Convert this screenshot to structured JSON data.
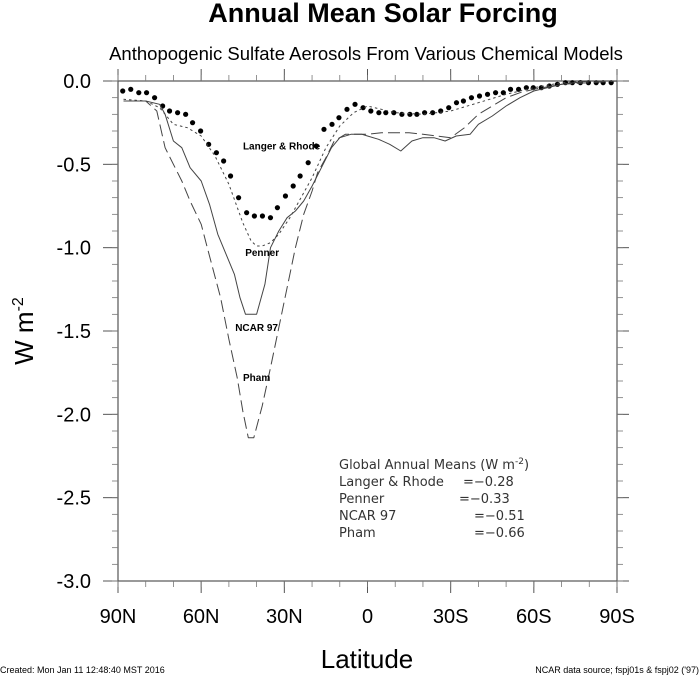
{
  "chart_data": {
    "type": "line",
    "title": "Annual Mean Solar Forcing",
    "subtitle": "Anthopogenic Sulfate Aerosols From Various Chemical Models",
    "xlabel": "Latitude",
    "ylabel": "W m",
    "ylabel_superscript": "-2",
    "xlim": [
      90,
      -90
    ],
    "ylim": [
      -3.0,
      0.0
    ],
    "x_ticks": [
      {
        "value": 90,
        "label": "90N"
      },
      {
        "value": 60,
        "label": "60N"
      },
      {
        "value": 30,
        "label": "30N"
      },
      {
        "value": 0,
        "label": "0"
      },
      {
        "value": -30,
        "label": "30S"
      },
      {
        "value": -60,
        "label": "60S"
      },
      {
        "value": -90,
        "label": "90S"
      }
    ],
    "y_ticks": [
      {
        "value": 0.0,
        "label": "0.0"
      },
      {
        "value": -0.5,
        "label": "-0.5"
      },
      {
        "value": -1.0,
        "label": "-1.0"
      },
      {
        "value": -1.5,
        "label": "-1.5"
      },
      {
        "value": -2.0,
        "label": "-2.0"
      },
      {
        "value": -2.5,
        "label": "-2.5"
      },
      {
        "value": -3.0,
        "label": "-3.0"
      }
    ],
    "grid": false,
    "series": [
      {
        "name": "Langer & Rhode",
        "style": "dots",
        "x": [
          88.3,
          85.4,
          82.5,
          79.7,
          76.8,
          73.9,
          71.4,
          68.5,
          65.6,
          63.1,
          60.2,
          57.3,
          54.5,
          51.9,
          49.4,
          46.5,
          43.6,
          40.8,
          37.9,
          35.0,
          32.5,
          29.6,
          26.8,
          24.3,
          21.4,
          18.5,
          15.7,
          12.8,
          10.3,
          7.4,
          4.5,
          1.6,
          -1.2,
          -4.1,
          -6.6,
          -9.5,
          -12.4,
          -15.3,
          -17.8,
          -20.6,
          -23.5,
          -26.4,
          -29.3,
          -32.1,
          -34.6,
          -37.5,
          -40.4,
          -43.3,
          -46.2,
          -49.0,
          -51.6,
          -54.5,
          -57.3,
          -59.8,
          -62.7,
          -65.6,
          -68.5,
          -71.4,
          -73.9,
          -76.8,
          -79.7,
          -82.5,
          -85.0,
          -87.9
        ],
        "y": [
          -0.06,
          -0.05,
          -0.07,
          -0.07,
          -0.1,
          -0.15,
          -0.18,
          -0.19,
          -0.2,
          -0.25,
          -0.3,
          -0.38,
          -0.43,
          -0.48,
          -0.57,
          -0.7,
          -0.79,
          -0.81,
          -0.81,
          -0.82,
          -0.76,
          -0.69,
          -0.63,
          -0.57,
          -0.49,
          -0.39,
          -0.29,
          -0.26,
          -0.22,
          -0.17,
          -0.14,
          -0.16,
          -0.18,
          -0.19,
          -0.19,
          -0.19,
          -0.2,
          -0.2,
          -0.2,
          -0.19,
          -0.19,
          -0.18,
          -0.16,
          -0.13,
          -0.12,
          -0.1,
          -0.09,
          -0.08,
          -0.07,
          -0.07,
          -0.05,
          -0.05,
          -0.04,
          -0.04,
          -0.04,
          -0.03,
          -0.02,
          -0.01,
          -0.01,
          -0.01,
          -0.01,
          -0.01,
          -0.01,
          -0.01
        ]
      },
      {
        "name": "Penner",
        "style": "dotted",
        "x": [
          88,
          80,
          75,
          70,
          65,
          60,
          55,
          50,
          45,
          42,
          40,
          38,
          35,
          32,
          28,
          25,
          20,
          15,
          10,
          5,
          0,
          -5,
          -10,
          -20,
          -30,
          -40,
          -50,
          -60,
          -70,
          -80,
          -90
        ],
        "y": [
          -0.11,
          -0.12,
          -0.16,
          -0.26,
          -0.28,
          -0.33,
          -0.45,
          -0.62,
          -0.85,
          -0.96,
          -0.99,
          -0.99,
          -0.97,
          -0.92,
          -0.82,
          -0.73,
          -0.58,
          -0.4,
          -0.27,
          -0.19,
          -0.15,
          -0.17,
          -0.19,
          -0.2,
          -0.18,
          -0.13,
          -0.08,
          -0.04,
          -0.01,
          0.0,
          0.0
        ]
      },
      {
        "name": "NCAR 97",
        "style": "solid",
        "x": [
          88,
          80,
          75,
          73,
          70,
          67,
          64,
          60,
          57,
          54,
          51,
          48,
          46,
          44,
          40,
          37,
          35,
          32,
          29,
          26,
          23,
          20,
          16,
          13,
          10,
          6,
          2,
          0,
          -4,
          -8,
          -12,
          -16,
          -20,
          -24,
          -28,
          -32,
          -37,
          -40,
          -45,
          -50,
          -55,
          -60,
          -70,
          -80,
          -90
        ],
        "y": [
          -0.12,
          -0.12,
          -0.14,
          -0.2,
          -0.36,
          -0.4,
          -0.52,
          -0.6,
          -0.74,
          -0.92,
          -1.04,
          -1.16,
          -1.3,
          -1.4,
          -1.4,
          -1.22,
          -1.0,
          -0.9,
          -0.82,
          -0.78,
          -0.72,
          -0.63,
          -0.5,
          -0.4,
          -0.34,
          -0.32,
          -0.32,
          -0.33,
          -0.35,
          -0.38,
          -0.42,
          -0.36,
          -0.34,
          -0.34,
          -0.36,
          -0.33,
          -0.32,
          -0.26,
          -0.21,
          -0.15,
          -0.1,
          -0.06,
          -0.02,
          0.0,
          0.0
        ]
      },
      {
        "name": "Pham",
        "style": "dashed",
        "x": [
          88,
          80,
          76,
          73,
          70,
          67,
          64,
          60,
          57,
          53,
          50,
          47,
          45,
          43,
          41,
          38,
          35,
          32,
          29,
          26,
          23,
          20,
          18,
          15,
          12,
          8,
          4,
          0,
          -5,
          -10,
          -15,
          -20,
          -25,
          -30,
          -35,
          -40,
          -45,
          -50,
          -55,
          -60,
          -70,
          -80,
          -90
        ],
        "y": [
          -0.12,
          -0.12,
          -0.18,
          -0.4,
          -0.5,
          -0.6,
          -0.72,
          -0.86,
          -1.05,
          -1.3,
          -1.55,
          -1.78,
          -1.98,
          -2.14,
          -2.14,
          -1.95,
          -1.72,
          -1.48,
          -1.24,
          -1.0,
          -0.8,
          -0.66,
          -0.55,
          -0.46,
          -0.36,
          -0.32,
          -0.32,
          -0.32,
          -0.31,
          -0.31,
          -0.31,
          -0.32,
          -0.33,
          -0.34,
          -0.28,
          -0.2,
          -0.15,
          -0.1,
          -0.07,
          -0.05,
          -0.02,
          -0.01,
          0.0
        ]
      }
    ],
    "curve_labels": [
      {
        "text": "Langer & Rhode",
        "x": 31,
        "y": -0.41
      },
      {
        "text": "Penner",
        "x": 38,
        "y": -1.05
      },
      {
        "text": "NCAR 97",
        "x": 40,
        "y": -1.5
      },
      {
        "text": "Pham",
        "x": 40,
        "y": -1.8
      }
    ],
    "annotation": {
      "heading": "Global Annual Means (W m",
      "heading_sup": "-2",
      "heading_end": ")",
      "rows": [
        {
          "name": "Langer & Rhode",
          "value": "=−0.28"
        },
        {
          "name": "Penner",
          "value": "=−0.33"
        },
        {
          "name": "NCAR 97",
          "value": "=−0.51"
        },
        {
          "name": "Pham",
          "value": "=−0.66"
        }
      ]
    }
  },
  "footer": {
    "left": "Created: Mon Jan 11 12:48:40 MST 2016",
    "right": "NCAR data source; fspj01s & fspj02 ('97)"
  }
}
